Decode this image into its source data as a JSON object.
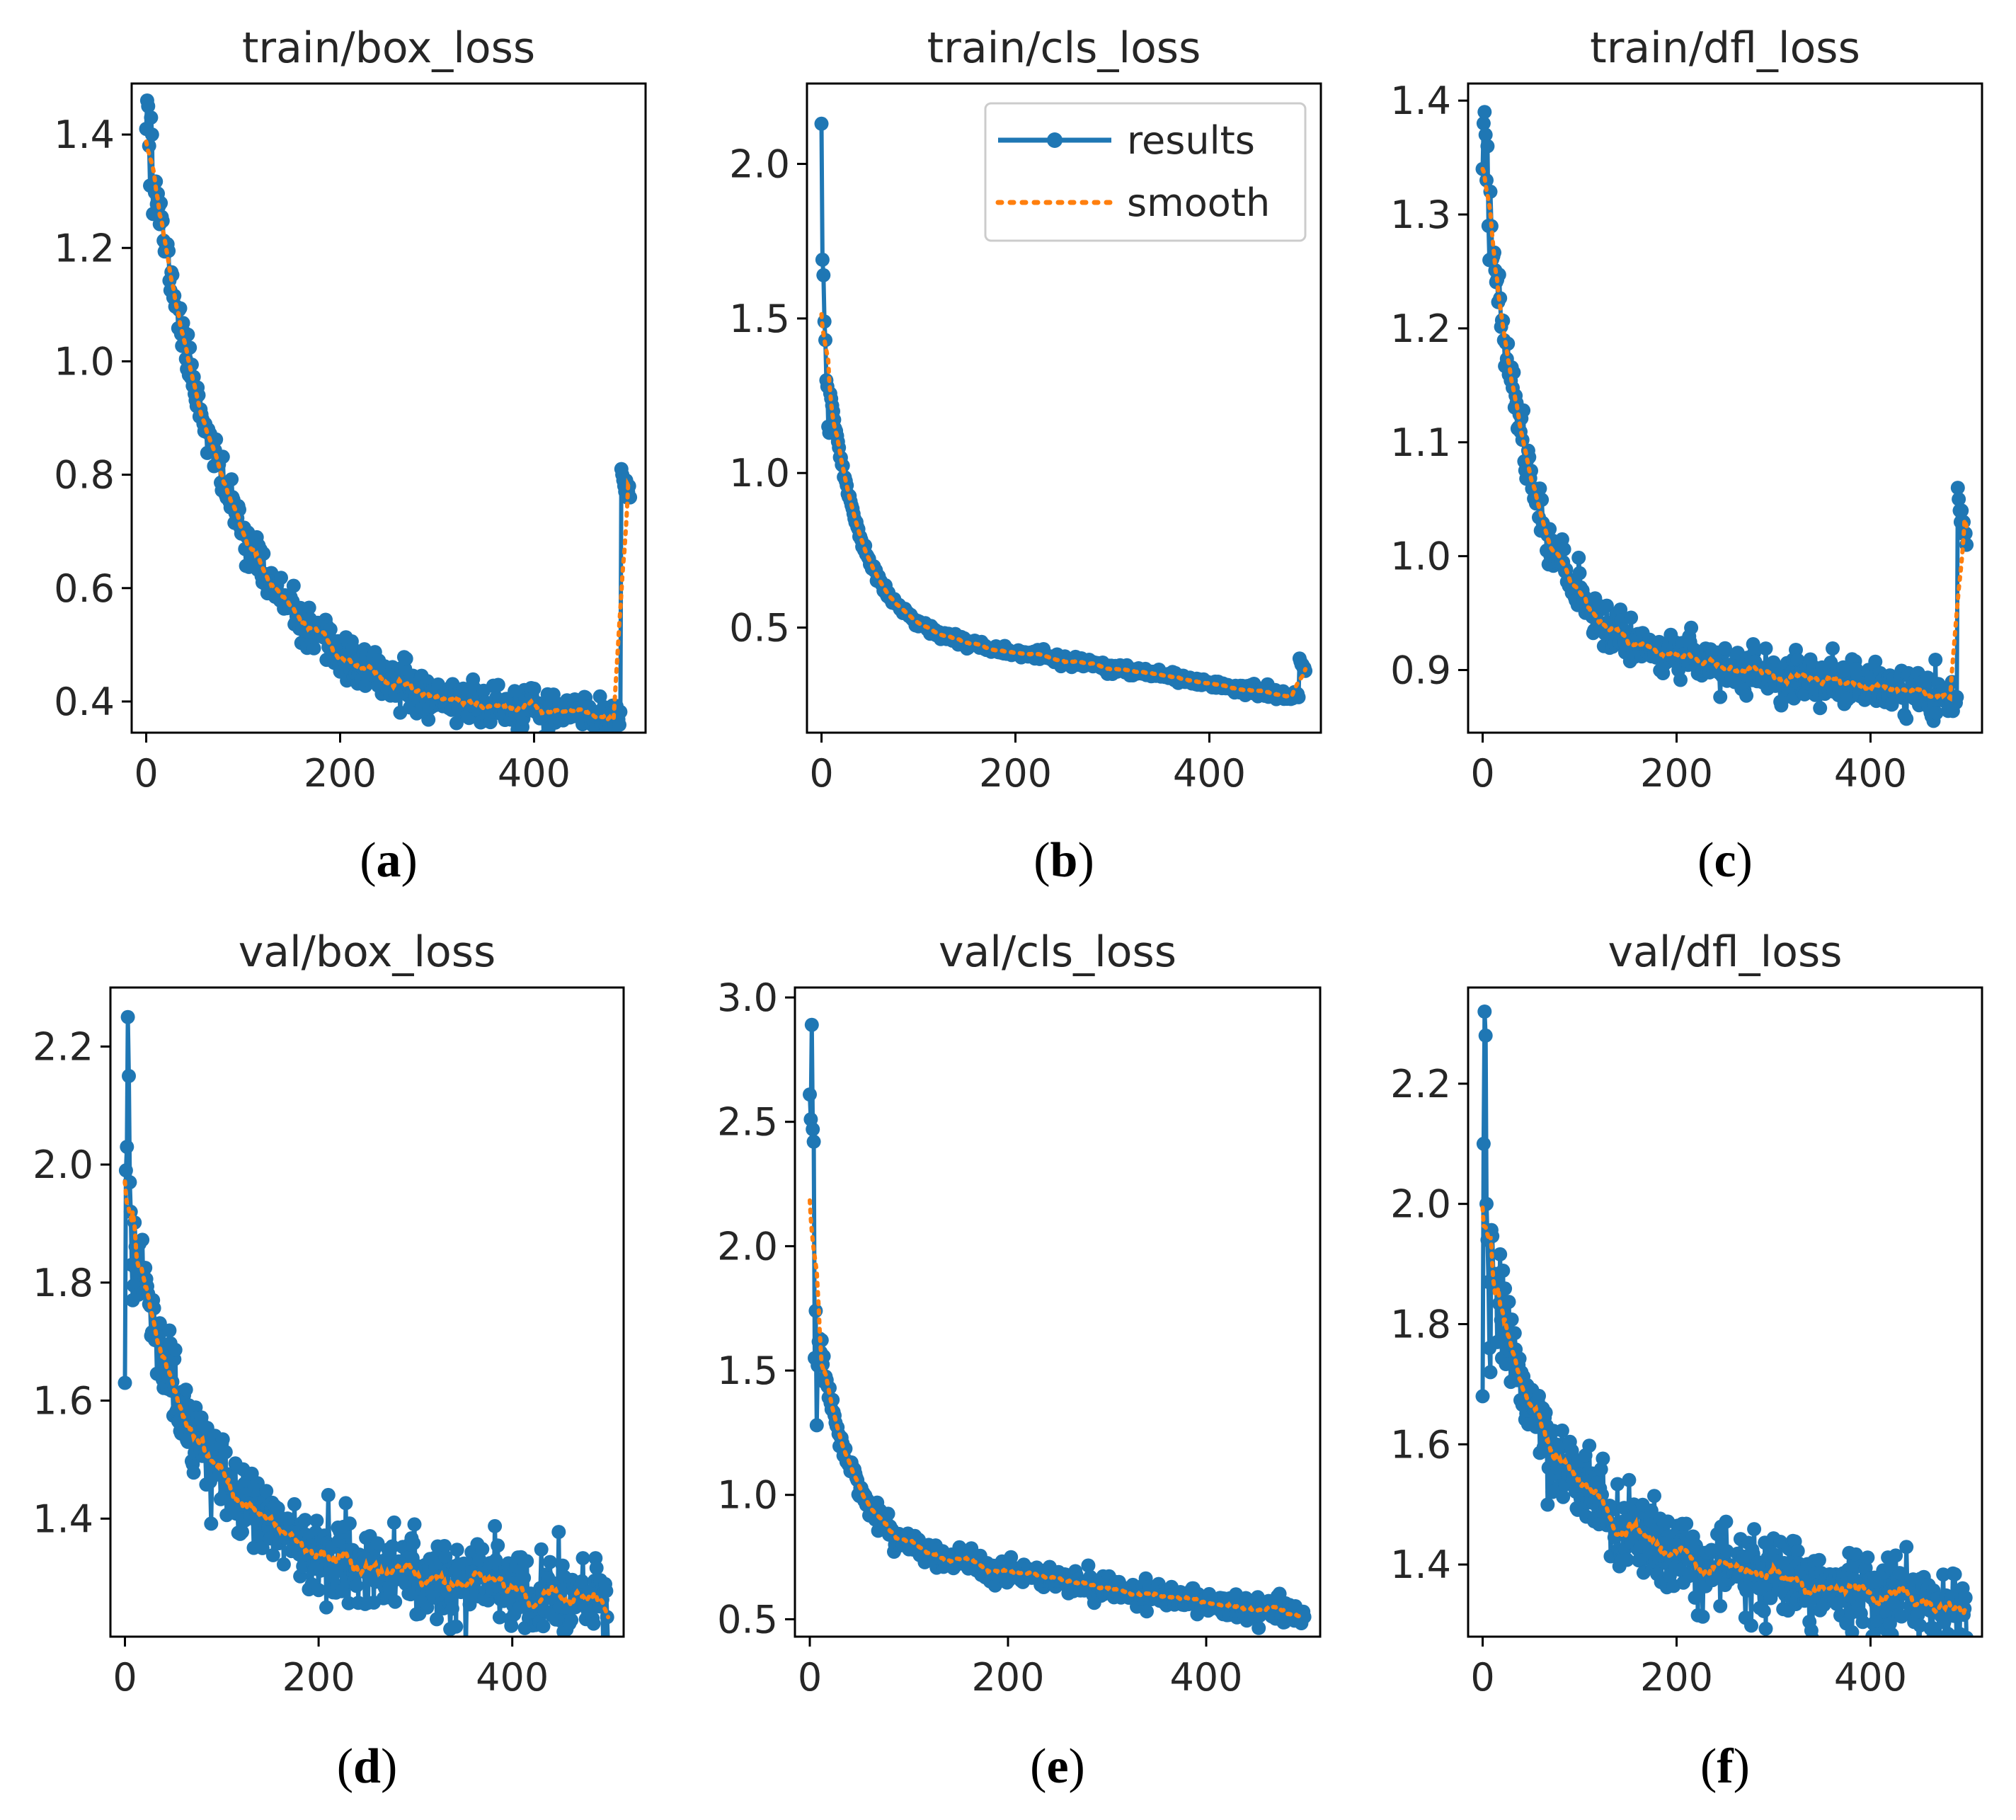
{
  "colors": {
    "results": "#1f77b4",
    "smooth": "#ff7f0e",
    "axis": "#000000",
    "text": "#262626"
  },
  "legend": {
    "placement": "top-right",
    "panel": 1,
    "entries": [
      "results",
      "smooth"
    ]
  },
  "chart_data": [
    {
      "type": "line",
      "title": "train/box_loss",
      "caption_letter": "a",
      "xlabel": "",
      "ylabel": "",
      "xlim": [
        -15,
        515
      ],
      "ylim": [
        0.345,
        1.49
      ],
      "xticks": [
        0,
        200,
        400
      ],
      "xtick_labels": [
        "0",
        "200",
        "400"
      ],
      "yticks": [
        0.4,
        0.6,
        0.8,
        1.0,
        1.2,
        1.4
      ],
      "ytick_labels": [
        "0.4",
        "0.6",
        "0.8",
        "1.0",
        "1.2",
        "1.4"
      ],
      "n_points": 500,
      "y_start": 1.42,
      "y_end": 0.37,
      "decay": 0.012,
      "tail": 0.03,
      "noise": 0.018,
      "seed": 11,
      "early_points": [
        [
          0,
          1.41
        ],
        [
          1,
          1.46
        ],
        [
          2,
          1.45
        ],
        [
          3,
          1.38
        ],
        [
          4,
          1.31
        ],
        [
          5,
          1.43
        ],
        [
          6,
          1.4
        ],
        [
          7,
          1.26
        ],
        [
          8,
          1.31
        ]
      ],
      "final_jump": {
        "start": 490,
        "values": [
          0.81,
          0.8,
          0.79,
          0.78,
          0.77,
          0.79,
          0.76,
          0.77,
          0.78,
          0.76
        ]
      },
      "series": [
        {
          "name": "results"
        },
        {
          "name": "smooth"
        }
      ]
    },
    {
      "type": "line",
      "title": "train/cls_loss",
      "caption_letter": "b",
      "xlabel": "",
      "ylabel": "",
      "xlim": [
        -15,
        515
      ],
      "ylim": [
        0.16,
        2.26
      ],
      "xticks": [
        0,
        200,
        400
      ],
      "xtick_labels": [
        "0",
        "200",
        "400"
      ],
      "yticks": [
        0.5,
        1.0,
        1.5,
        2.0
      ],
      "ytick_labels": [
        "0.5",
        "1.0",
        "1.5",
        "2.0"
      ],
      "n_points": 500,
      "y_start": 1.5,
      "y_end": 0.27,
      "decay": 0.03,
      "tail": 0.25,
      "noise": 0.008,
      "seed": 23,
      "early_points": [
        [
          0,
          2.13
        ],
        [
          1,
          1.69
        ],
        [
          2,
          1.64
        ],
        [
          3,
          1.49
        ],
        [
          4,
          1.43
        ],
        [
          5,
          1.3
        ],
        [
          6,
          1.28
        ],
        [
          7,
          1.15
        ],
        [
          8,
          1.13
        ]
      ],
      "final_jump": {
        "start": 493,
        "values": [
          0.4,
          0.39,
          0.38,
          0.38,
          0.37,
          0.37,
          0.36
        ]
      },
      "series": [
        {
          "name": "results"
        },
        {
          "name": "smooth"
        }
      ]
    },
    {
      "type": "line",
      "title": "train/dfl_loss",
      "caption_letter": "c",
      "xlabel": "",
      "ylabel": "",
      "xlim": [
        -15,
        515
      ],
      "ylim": [
        0.845,
        1.415
      ],
      "xticks": [
        0,
        200,
        400
      ],
      "xtick_labels": [
        "0",
        "200",
        "400"
      ],
      "yticks": [
        0.9,
        1.0,
        1.1,
        1.2,
        1.3,
        1.4
      ],
      "ytick_labels": [
        "0.9",
        "1.0",
        "1.1",
        "1.2",
        "1.3",
        "1.4"
      ],
      "n_points": 500,
      "y_start": 1.37,
      "y_end": 0.875,
      "decay": 0.022,
      "tail": 0.12,
      "noise": 0.01,
      "seed": 37,
      "early_points": [
        [
          0,
          1.34
        ],
        [
          1,
          1.38
        ],
        [
          2,
          1.39
        ],
        [
          3,
          1.37
        ],
        [
          4,
          1.33
        ],
        [
          5,
          1.36
        ],
        [
          6,
          1.29
        ],
        [
          7,
          1.26
        ],
        [
          8,
          1.32
        ]
      ],
      "final_jump": {
        "start": 490,
        "values": [
          1.06,
          1.05,
          1.04,
          1.03,
          1.04,
          1.02,
          1.03,
          1.02,
          1.02,
          1.01
        ]
      },
      "series": [
        {
          "name": "results"
        },
        {
          "name": "smooth"
        }
      ]
    },
    {
      "type": "line",
      "title": "val/box_loss",
      "caption_letter": "d",
      "xlabel": "",
      "ylabel": "",
      "xlim": [
        -15,
        515
      ],
      "ylim": [
        1.2,
        2.3
      ],
      "xticks": [
        0,
        200,
        400
      ],
      "xtick_labels": [
        "0",
        "200",
        "400"
      ],
      "yticks": [
        1.4,
        1.6,
        1.8,
        2.0,
        2.2
      ],
      "ytick_labels": [
        "1.4",
        "1.6",
        "1.8",
        "2.0",
        "2.2"
      ],
      "n_points": 500,
      "y_start": 1.95,
      "y_end": 1.25,
      "decay": 0.016,
      "tail": 0.22,
      "noise": 0.035,
      "seed": 53,
      "early_points": [
        [
          0,
          1.63
        ],
        [
          1,
          1.99
        ],
        [
          2,
          2.03
        ],
        [
          3,
          2.25
        ],
        [
          4,
          2.15
        ],
        [
          5,
          1.97
        ],
        [
          6,
          1.92
        ],
        [
          7,
          1.83
        ],
        [
          8,
          1.77
        ]
      ],
      "outliers": [
        [
          210,
          1.44
        ]
      ],
      "series": [
        {
          "name": "results"
        },
        {
          "name": "smooth"
        }
      ]
    },
    {
      "type": "line",
      "title": "val/cls_loss",
      "caption_letter": "e",
      "xlabel": "",
      "ylabel": "",
      "xlim": [
        -15,
        515
      ],
      "ylim": [
        0.43,
        3.04
      ],
      "xticks": [
        0,
        200,
        400
      ],
      "xtick_labels": [
        "0",
        "200",
        "400"
      ],
      "yticks": [
        0.5,
        1.0,
        1.5,
        2.0,
        2.5,
        3.0
      ],
      "ytick_labels": [
        "0.5",
        "1.0",
        "1.5",
        "2.0",
        "2.5",
        "3.0"
      ],
      "n_points": 500,
      "y_start": 1.9,
      "y_end": 0.51,
      "decay": 0.03,
      "tail": 0.28,
      "noise": 0.025,
      "seed": 71,
      "early_points": [
        [
          0,
          2.61
        ],
        [
          1,
          2.51
        ],
        [
          2,
          2.89
        ],
        [
          3,
          2.47
        ],
        [
          4,
          2.42
        ],
        [
          5,
          1.55
        ],
        [
          6,
          1.74
        ],
        [
          7,
          1.28
        ],
        [
          8,
          1.52
        ]
      ],
      "series": [
        {
          "name": "results"
        },
        {
          "name": "smooth"
        }
      ]
    },
    {
      "type": "line",
      "title": "val/dfl_loss",
      "caption_letter": "f",
      "xlabel": "",
      "ylabel": "",
      "xlim": [
        -15,
        515
      ],
      "ylim": [
        1.28,
        2.36
      ],
      "xticks": [
        0,
        200,
        400
      ],
      "xtick_labels": [
        "0",
        "200",
        "400"
      ],
      "yticks": [
        1.4,
        1.6,
        1.8,
        2.0,
        2.2
      ],
      "ytick_labels": [
        "1.4",
        "1.6",
        "1.8",
        "2.0",
        "2.2"
      ],
      "n_points": 500,
      "y_start": 1.97,
      "y_end": 1.33,
      "decay": 0.016,
      "tail": 0.22,
      "noise": 0.035,
      "seed": 89,
      "early_points": [
        [
          0,
          1.68
        ],
        [
          1,
          2.1
        ],
        [
          2,
          2.32
        ],
        [
          3,
          2.28
        ],
        [
          4,
          2.0
        ],
        [
          5,
          1.94
        ],
        [
          6,
          1.87
        ],
        [
          7,
          1.76
        ],
        [
          8,
          1.72
        ]
      ],
      "series": [
        {
          "name": "results"
        },
        {
          "name": "smooth"
        }
      ]
    }
  ]
}
